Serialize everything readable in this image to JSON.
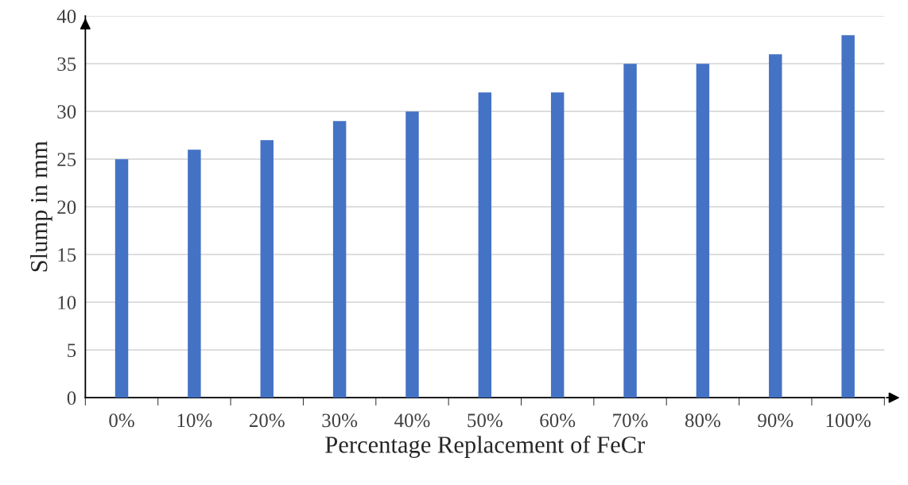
{
  "chart_data": {
    "type": "bar",
    "xlabel": "Percentage Replacement of FeCr",
    "ylabel": "Slump in mm",
    "categories": [
      "0%",
      "10%",
      "20%",
      "30%",
      "40%",
      "50%",
      "60%",
      "70%",
      "80%",
      "90%",
      "100%"
    ],
    "values": [
      25,
      26,
      27,
      29,
      30,
      32,
      32,
      35,
      35,
      36,
      38
    ],
    "color": "#4472c4",
    "ylim": [
      0,
      40
    ],
    "yticks": [
      0,
      5,
      10,
      15,
      20,
      25,
      30,
      35,
      40
    ],
    "grid": "y",
    "legend": false
  }
}
